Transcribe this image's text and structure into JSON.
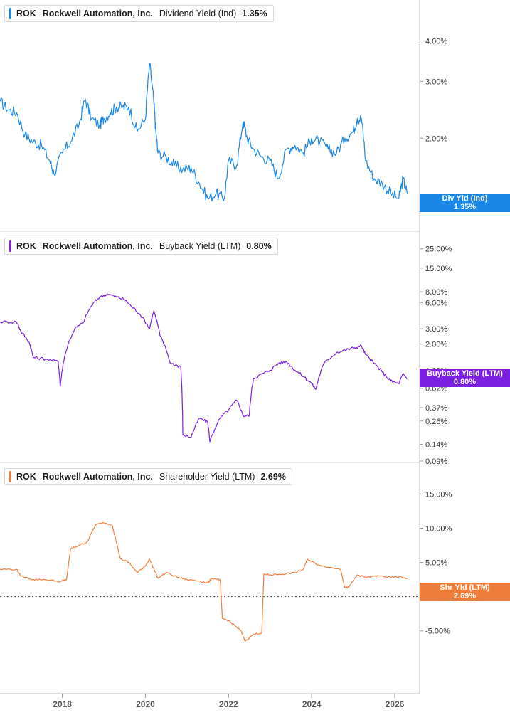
{
  "chart_data": [
    {
      "type": "line",
      "ticker": "ROK",
      "company": "Rockwell Automation, Inc.",
      "metric": "Dividend Yield (Ind)",
      "value_label": "1.35%",
      "tag_label": "Div Yld (Ind)",
      "color": "#1a87e6",
      "scale": "log",
      "ylim": [
        1.2,
        4.6
      ],
      "yticks": [
        {
          "v": 4.0,
          "label": "4.00%"
        },
        {
          "v": 3.0,
          "label": "3.00%"
        },
        {
          "v": 2.0,
          "label": "2.00%"
        }
      ],
      "x": [
        2016.5,
        2016.7,
        2016.9,
        2017.1,
        2017.3,
        2017.5,
        2017.7,
        2017.8,
        2018.0,
        2018.2,
        2018.4,
        2018.55,
        2018.7,
        2018.9,
        2019.0,
        2019.15,
        2019.3,
        2019.45,
        2019.6,
        2019.8,
        2020.0,
        2020.1,
        2020.2,
        2020.25,
        2020.3,
        2020.5,
        2020.7,
        2020.9,
        2021.1,
        2021.3,
        2021.5,
        2021.7,
        2021.9,
        2022.0,
        2022.2,
        2022.35,
        2022.45,
        2022.6,
        2022.8,
        2023.0,
        2023.2,
        2023.4,
        2023.6,
        2023.8,
        2024.0,
        2024.2,
        2024.4,
        2024.6,
        2024.8,
        2025.0,
        2025.1,
        2025.2,
        2025.3,
        2025.5,
        2025.7,
        2025.9,
        2026.1,
        2026.2,
        2026.3
      ],
      "values": [
        2.6,
        2.45,
        2.4,
        2.05,
        1.95,
        1.9,
        1.7,
        1.55,
        1.8,
        1.95,
        2.2,
        2.65,
        2.3,
        2.2,
        2.3,
        2.4,
        2.5,
        2.5,
        2.5,
        2.1,
        2.3,
        3.4,
        2.6,
        2.1,
        1.8,
        1.75,
        1.65,
        1.6,
        1.62,
        1.45,
        1.3,
        1.35,
        1.3,
        1.7,
        1.65,
        2.25,
        2.0,
        1.85,
        1.75,
        1.7,
        1.5,
        1.85,
        1.9,
        1.8,
        2.0,
        1.95,
        1.85,
        1.8,
        2.0,
        2.1,
        2.3,
        2.3,
        1.7,
        1.5,
        1.45,
        1.35,
        1.3,
        1.5,
        1.35
      ]
    },
    {
      "type": "line",
      "ticker": "ROK",
      "company": "Rockwell Automation, Inc.",
      "metric": "Buyback Yield (LTM)",
      "value_label": "0.80%",
      "tag_label": "Buyback Yield (LTM)",
      "color": "#7b1fe0",
      "scale": "log",
      "ylim": [
        0.09,
        30
      ],
      "yticks": [
        {
          "v": 25,
          "label": "25.00%"
        },
        {
          "v": 15,
          "label": "15.00%"
        },
        {
          "v": 8,
          "label": "8.00%"
        },
        {
          "v": 6,
          "label": "6.00%"
        },
        {
          "v": 3,
          "label": "3.00%"
        },
        {
          "v": 2,
          "label": "2.00%"
        },
        {
          "v": 1,
          "label": "1.00%"
        },
        {
          "v": 0.62,
          "label": "0.62%"
        },
        {
          "v": 0.37,
          "label": "0.37%"
        },
        {
          "v": 0.26,
          "label": "0.26%"
        },
        {
          "v": 0.14,
          "label": "0.14%"
        },
        {
          "v": 0.09,
          "label": "0.09%"
        }
      ],
      "x": [
        2016.5,
        2016.9,
        2017.0,
        2017.2,
        2017.3,
        2017.6,
        2017.9,
        2017.95,
        2018.05,
        2018.3,
        2018.5,
        2018.7,
        2018.9,
        2019.1,
        2019.3,
        2019.5,
        2019.65,
        2019.85,
        2020.1,
        2020.2,
        2020.35,
        2020.6,
        2020.85,
        2020.9,
        2021.1,
        2021.3,
        2021.5,
        2021.55,
        2021.8,
        2022.0,
        2022.2,
        2022.35,
        2022.5,
        2022.6,
        2022.8,
        2023.0,
        2023.2,
        2023.4,
        2023.6,
        2023.8,
        2024.0,
        2024.1,
        2024.3,
        2024.6,
        2024.8,
        2025.0,
        2025.2,
        2025.3,
        2025.5,
        2025.7,
        2025.9,
        2026.1,
        2026.2,
        2026.3
      ],
      "values": [
        3.6,
        3.6,
        2.8,
        2.1,
        1.4,
        1.35,
        1.25,
        0.65,
        1.4,
        3.0,
        3.5,
        5.5,
        7.0,
        7.5,
        7.0,
        6.5,
        5.5,
        4.5,
        3.0,
        4.8,
        2.5,
        1.2,
        1.1,
        0.18,
        0.17,
        0.28,
        0.25,
        0.15,
        0.28,
        0.35,
        0.45,
        0.3,
        0.3,
        0.8,
        0.9,
        1.0,
        1.2,
        1.25,
        1.0,
        0.85,
        0.7,
        0.6,
        1.2,
        1.6,
        1.7,
        1.8,
        1.9,
        1.5,
        1.2,
        0.95,
        0.75,
        0.7,
        0.9,
        0.8
      ]
    },
    {
      "type": "line",
      "ticker": "ROK",
      "company": "Rockwell Automation, Inc.",
      "metric": "Shareholder Yield (LTM)",
      "value_label": "2.69%",
      "tag_label": "Shr Yld (LTM)",
      "color": "#ef7d3a",
      "scale": "linear",
      "ylim": [
        -9.5,
        16.5
      ],
      "zero_line": true,
      "yticks": [
        {
          "v": 15,
          "label": "15.00%"
        },
        {
          "v": 10,
          "label": "10.00%"
        },
        {
          "v": 5,
          "label": "5.00%"
        },
        {
          "v": 0,
          "label": "0.00%"
        },
        {
          "v": -5,
          "label": "-5.00%"
        }
      ],
      "x": [
        2016.5,
        2016.9,
        2017.0,
        2017.3,
        2017.6,
        2017.95,
        2018.1,
        2018.2,
        2018.4,
        2018.6,
        2018.8,
        2019.0,
        2019.2,
        2019.4,
        2019.6,
        2019.8,
        2020.0,
        2020.1,
        2020.3,
        2020.5,
        2020.8,
        2021.0,
        2021.3,
        2021.5,
        2021.6,
        2021.8,
        2021.85,
        2022.0,
        2022.2,
        2022.3,
        2022.4,
        2022.6,
        2022.8,
        2022.85,
        2023.0,
        2023.3,
        2023.6,
        2023.8,
        2023.9,
        2024.1,
        2024.4,
        2024.7,
        2024.8,
        2024.9,
        2025.1,
        2025.3,
        2025.5,
        2025.7,
        2025.9,
        2026.1,
        2026.3
      ],
      "values": [
        4.0,
        4.0,
        3.0,
        2.5,
        2.5,
        2.2,
        2.5,
        7.0,
        7.5,
        8.0,
        10.5,
        10.8,
        10.5,
        5.5,
        5.0,
        3.5,
        4.5,
        5.5,
        2.7,
        3.5,
        2.8,
        2.5,
        2.3,
        2.0,
        2.7,
        2.5,
        -3.2,
        -3.5,
        -4.5,
        -5.0,
        -6.5,
        -5.5,
        -5.3,
        3.3,
        3.2,
        3.3,
        3.5,
        4.0,
        5.5,
        4.8,
        4.3,
        4.0,
        1.3,
        1.4,
        3.2,
        2.8,
        3.0,
        3.0,
        2.8,
        2.9,
        2.69
      ]
    }
  ],
  "x_axis": {
    "ticks": [
      {
        "v": 2018,
        "label": "2018"
      },
      {
        "v": 2020,
        "label": "2020"
      },
      {
        "v": 2022,
        "label": "2022"
      },
      {
        "v": 2024,
        "label": "2024"
      },
      {
        "v": 2026,
        "label": "2026"
      }
    ],
    "range": [
      2016.5,
      2026.6
    ]
  }
}
